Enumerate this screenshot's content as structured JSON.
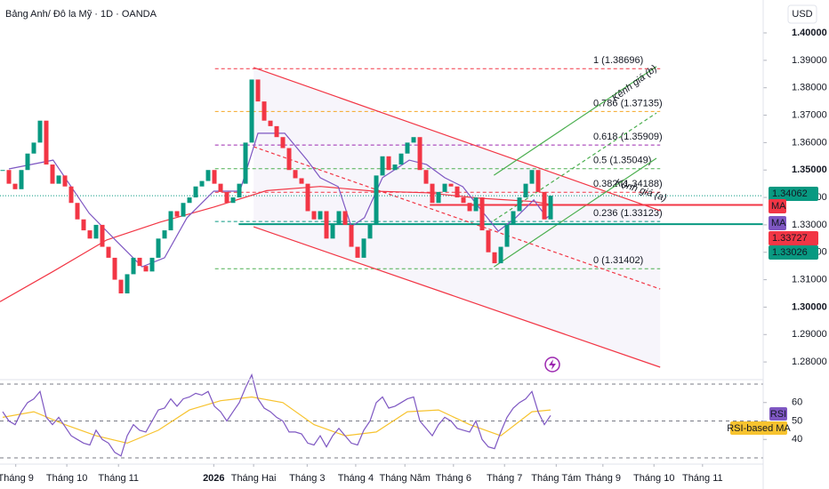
{
  "chart_data": {
    "type": "candlestick",
    "title": "Bảng Anh/ Đô la Mỹ · 1D · OANDA",
    "currency": "USD",
    "xlim": [
      -0.43,
      122.14
    ],
    "ylim": [
      1.2742,
      1.412
    ],
    "yticks": [
      {
        "value": 1.28,
        "label": "1.28000"
      },
      {
        "value": 1.29,
        "label": "1.29000"
      },
      {
        "value": 1.3,
        "label": "1.30000"
      },
      {
        "value": 1.31,
        "label": "1.31000"
      },
      {
        "value": 1.32,
        "label": "1.32000"
      },
      {
        "value": 1.33,
        "label": "1.33000"
      },
      {
        "value": 1.34,
        "label": "1.34000"
      },
      {
        "value": 1.35,
        "label": "1.35000"
      },
      {
        "value": 1.36,
        "label": "1.36000"
      },
      {
        "value": 1.37,
        "label": "1.37000"
      },
      {
        "value": 1.38,
        "label": "1.38000"
      },
      {
        "value": 1.39,
        "label": "1.39000"
      },
      {
        "value": 1.4,
        "label": "1.40000"
      }
    ],
    "xticks": [
      {
        "value": 2.1,
        "label": "Tháng 9"
      },
      {
        "value": 10.3,
        "label": "Tháng 10"
      },
      {
        "value": 18.6,
        "label": "Tháng 11"
      },
      {
        "value": 33.9,
        "label": "2026"
      },
      {
        "value": 40.3,
        "label": "Tháng Hai"
      },
      {
        "value": 48.9,
        "label": "Tháng 3"
      },
      {
        "value": 56.7,
        "label": "Tháng 4"
      },
      {
        "value": 64.6,
        "label": "Tháng Năm"
      },
      {
        "value": 72.4,
        "label": "Tháng 6"
      },
      {
        "value": 80.6,
        "label": "Tháng 7"
      },
      {
        "value": 88.9,
        "label": "Tháng Tám"
      },
      {
        "value": 96.4,
        "label": "Tháng 9"
      },
      {
        "value": 104.6,
        "label": "Tháng 10"
      },
      {
        "value": 112.4,
        "label": "Tháng 11"
      }
    ],
    "x": [
      0,
      1,
      2,
      3,
      4,
      5,
      6,
      7,
      8,
      9,
      10,
      11,
      12,
      13,
      14,
      15,
      16,
      17,
      18,
      19,
      20,
      21,
      22,
      23,
      24,
      25,
      26,
      27,
      28,
      29,
      30,
      31,
      32,
      33,
      34,
      35,
      36,
      37,
      38,
      39,
      40,
      41,
      42,
      43,
      44,
      45,
      46,
      47,
      48,
      49,
      50,
      51,
      52,
      53,
      54,
      55,
      56,
      57,
      58,
      59,
      60,
      61,
      62,
      63,
      64,
      65,
      66,
      67,
      68,
      69,
      70,
      71,
      72,
      73,
      74,
      75,
      76,
      77,
      78,
      79,
      80,
      81,
      82,
      83,
      84,
      85,
      86,
      87,
      88
    ],
    "closes": [
      1.35,
      1.345,
      1.343,
      1.35,
      1.356,
      1.36,
      1.368,
      1.352,
      1.345,
      1.348,
      1.344,
      1.338,
      1.332,
      1.328,
      1.325,
      1.33,
      1.322,
      1.318,
      1.31,
      1.305,
      1.312,
      1.318,
      1.315,
      1.313,
      1.318,
      1.325,
      1.328,
      1.335,
      1.333,
      1.338,
      1.34,
      1.344,
      1.346,
      1.35,
      1.345,
      1.342,
      1.338,
      1.34,
      1.345,
      1.36,
      1.383,
      1.375,
      1.368,
      1.366,
      1.362,
      1.358,
      1.35,
      1.347,
      1.345,
      1.335,
      1.332,
      1.335,
      1.325,
      1.33,
      1.335,
      1.33,
      1.322,
      1.318,
      1.325,
      1.33,
      1.348,
      1.355,
      1.35,
      1.352,
      1.356,
      1.36,
      1.362,
      1.35,
      1.345,
      1.338,
      1.342,
      1.345,
      1.344,
      1.34,
      1.338,
      1.335,
      1.34,
      1.328,
      1.32,
      1.316,
      1.322,
      1.33,
      1.335,
      1.34,
      1.345,
      1.35,
      1.342,
      1.332,
      1.34062
    ],
    "up_color": "#089981",
    "down_color": "#f23645",
    "moving_averages": [
      {
        "name": "MA",
        "color": "#f23645",
        "x": [
          -0.43,
          8.1,
          16.7,
          25.3,
          33.9,
          42.4,
          51,
          59.6,
          68.1,
          76.7,
          85.3,
          88.3
        ],
        "values": [
          1.302,
          1.313,
          1.3245,
          1.331,
          1.3365,
          1.3425,
          1.344,
          1.3423,
          1.3417,
          1.3397,
          1.3385,
          1.3373
        ]
      },
      {
        "name": "MA",
        "color": "#7e57c2",
        "x": [
          1,
          8.1,
          13.9,
          18.1,
          22.4,
          26,
          29.6,
          33.9,
          38.1,
          41,
          45.3,
          48.9,
          51,
          53.9,
          56,
          58.1,
          61,
          65.3,
          68.1,
          71,
          73.9,
          76.7,
          79.6,
          82.4,
          85.3,
          87.4,
          88.3
        ],
        "values": [
          1.3504,
          1.3536,
          1.3342,
          1.3245,
          1.3147,
          1.318,
          1.3326,
          1.3423,
          1.3423,
          1.3634,
          1.3634,
          1.3536,
          1.3472,
          1.3439,
          1.3294,
          1.3326,
          1.3472,
          1.3536,
          1.352,
          1.3472,
          1.3439,
          1.3358,
          1.3277,
          1.3326,
          1.3391,
          1.3326,
          1.3342
        ]
      }
    ],
    "price_tags": [
      {
        "value": 1.34062,
        "color": "#089981"
      },
      {
        "value": 1.33727,
        "color": "#f23645"
      },
      {
        "value": 1.33026,
        "color": "#089981"
      }
    ],
    "fib_x": [
      34.1,
      105.6
    ],
    "fib_levels": [
      {
        "label": "1 (1.38696)",
        "value": 1.38696,
        "color": "#f23645"
      },
      {
        "label": "0.786 (1.37135)",
        "value": 1.37135,
        "color": "#f5a623"
      },
      {
        "label": "0.618 (1.35909)",
        "value": 1.35909,
        "color": "#9c27b0"
      },
      {
        "label": "0.5 (1.35049)",
        "value": 1.35049,
        "color": "#4caf50"
      },
      {
        "label": "0.382 (1.34188)",
        "value": 1.34188,
        "color": "#f23645"
      },
      {
        "label": "0.236 (1.33123)",
        "value": 1.33123,
        "color": "#089981"
      },
      {
        "label": "0 (1.31402)",
        "value": 1.31402,
        "color": "#4caf50"
      }
    ],
    "trend_lines": [
      {
        "color": "#f23645",
        "dashed": false,
        "x": [
          40.3,
          105.6
        ],
        "values": [
          1.3874,
          1.3352
        ]
      },
      {
        "color": "#f23645",
        "dashed": false,
        "x": [
          40.3,
          105.6
        ],
        "values": [
          1.3293,
          1.2781
        ]
      },
      {
        "color": "#f23645",
        "dashed": true,
        "x": [
          40.3,
          105.6
        ],
        "values": [
          1.3585,
          1.3066
        ]
      },
      {
        "color": "#4caf50",
        "dashed": false,
        "x": [
          78.9,
          105
        ],
        "values": [
          1.3481,
          1.3877
        ]
      },
      {
        "color": "#4caf50",
        "dashed": false,
        "x": [
          78.9,
          105
        ],
        "values": [
          1.3147,
          1.3543
        ]
      },
      {
        "color": "#4caf50",
        "dashed": true,
        "x": [
          78.9,
          105
        ],
        "values": [
          1.3316,
          1.3708
        ]
      }
    ],
    "horizontal_lines": [
      {
        "value": 1.33727,
        "x_start": 68.6,
        "color": "#f23645"
      },
      {
        "value": 1.33026,
        "x_start": 37.9,
        "color": "#089981"
      }
    ],
    "annotations": [
      {
        "text": "Kênh giá (b)",
        "x": 101.5,
        "value": 1.3815,
        "angle": -37,
        "color": "#4caf50"
      },
      {
        "text": "Kênh giá (a)",
        "x": 102.5,
        "value": 1.3425,
        "angle": 18,
        "color": "#4caf50"
      }
    ],
    "rsi": {
      "name": "RSI",
      "color": "#7e57c2",
      "ylim": [
        30,
        70
      ],
      "yticks": [
        40,
        50,
        60
      ],
      "levels": [
        70,
        50,
        30
      ],
      "values": [
        55,
        50,
        48,
        55,
        60,
        62,
        66,
        52,
        48,
        52,
        47,
        42,
        40,
        38,
        37,
        45,
        40,
        38,
        33,
        31,
        42,
        48,
        45,
        44,
        50,
        56,
        57,
        62,
        58,
        62,
        63,
        65,
        64,
        66,
        58,
        55,
        50,
        55,
        60,
        68,
        75,
        62,
        57,
        55,
        52,
        50,
        44,
        44,
        43,
        38,
        37,
        42,
        36,
        42,
        46,
        42,
        38,
        37,
        45,
        50,
        60,
        63,
        57,
        58,
        60,
        62,
        63,
        50,
        46,
        42,
        48,
        52,
        50,
        46,
        45,
        44,
        50,
        40,
        36,
        35,
        44,
        52,
        57,
        60,
        62,
        66,
        55,
        48,
        53
      ]
    },
    "rsi_ma": {
      "name": "RSI-based MA",
      "color": "#f7c32f",
      "x": [
        0,
        5,
        10,
        15,
        20,
        25,
        30,
        35,
        40,
        45,
        50,
        55,
        60,
        65,
        70,
        75,
        80,
        85,
        88
      ],
      "values": [
        52,
        55,
        48,
        42,
        38,
        45,
        56,
        61,
        63,
        60,
        48,
        42,
        44,
        55,
        56,
        48,
        42,
        55,
        56
      ]
    }
  }
}
